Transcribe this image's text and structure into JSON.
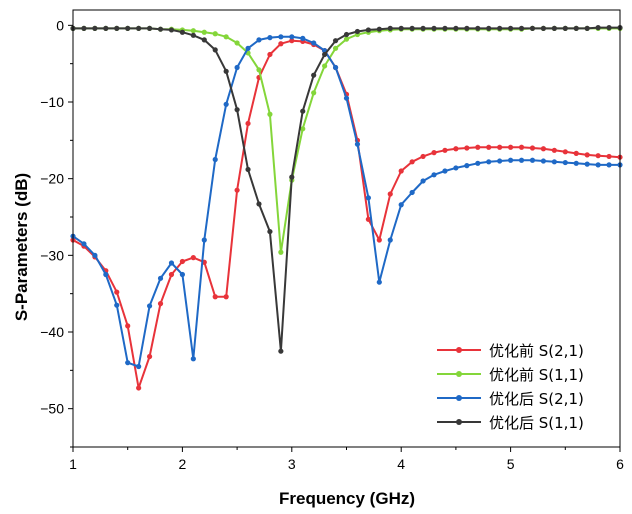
{
  "chart_data": {
    "type": "line",
    "title": "",
    "xlabel": "Frequency (GHz)",
    "ylabel": "S-Parameters (dB)",
    "xlim": [
      1,
      6
    ],
    "ylim": [
      -55,
      2
    ],
    "xticks": [
      1,
      2,
      3,
      4,
      5,
      6
    ],
    "yticks": [
      0,
      -10,
      -20,
      -30,
      -40,
      -50
    ],
    "grid": false,
    "legend_position": "bottom-right",
    "series": [
      {
        "name": "优化前 S(2,1)",
        "color": "#e8333a",
        "x": [
          1.0,
          1.1,
          1.2,
          1.3,
          1.4,
          1.5,
          1.6,
          1.7,
          1.8,
          1.9,
          2.0,
          2.1,
          2.2,
          2.3,
          2.4,
          2.5,
          2.6,
          2.7,
          2.8,
          2.9,
          3.0,
          3.1,
          3.2,
          3.3,
          3.4,
          3.5,
          3.6,
          3.7,
          3.8,
          3.9,
          4.0,
          4.1,
          4.2,
          4.3,
          4.4,
          4.5,
          4.6,
          4.7,
          4.8,
          4.9,
          5.0,
          5.1,
          5.2,
          5.3,
          5.4,
          5.5,
          5.6,
          5.7,
          5.8,
          5.9,
          6.0
        ],
        "values": [
          -28.0,
          -28.8,
          -30.2,
          -32.0,
          -34.8,
          -39.2,
          -47.3,
          -43.2,
          -36.3,
          -32.5,
          -30.8,
          -30.3,
          -30.9,
          -35.4,
          -35.4,
          -21.5,
          -12.8,
          -6.8,
          -3.8,
          -2.4,
          -2.0,
          -2.1,
          -2.5,
          -3.3,
          -5.5,
          -9.0,
          -15.0,
          -25.3,
          -28.0,
          -22.0,
          -19.0,
          -17.8,
          -17.1,
          -16.6,
          -16.3,
          -16.1,
          -16.0,
          -15.9,
          -15.9,
          -15.9,
          -15.9,
          -15.9,
          -16.0,
          -16.1,
          -16.3,
          -16.5,
          -16.7,
          -16.9,
          -17.0,
          -17.1,
          -17.2
        ]
      },
      {
        "name": "优化前 S(1,1)",
        "color": "#84d63a",
        "x": [
          1.0,
          1.1,
          1.2,
          1.3,
          1.4,
          1.5,
          1.6,
          1.7,
          1.8,
          1.9,
          2.0,
          2.1,
          2.2,
          2.3,
          2.4,
          2.5,
          2.6,
          2.7,
          2.8,
          2.9,
          3.0,
          3.1,
          3.2,
          3.3,
          3.4,
          3.5,
          3.6,
          3.7,
          3.8,
          3.9,
          4.0,
          4.1,
          4.2,
          4.3,
          4.4,
          4.5,
          4.6,
          4.7,
          4.8,
          4.9,
          5.0,
          5.1,
          5.2,
          5.3,
          5.4,
          5.5,
          5.6,
          5.7,
          5.8,
          5.9,
          6.0
        ],
        "values": [
          -0.4,
          -0.4,
          -0.4,
          -0.4,
          -0.4,
          -0.4,
          -0.4,
          -0.4,
          -0.5,
          -0.5,
          -0.6,
          -0.7,
          -0.9,
          -1.1,
          -1.5,
          -2.3,
          -3.6,
          -5.8,
          -11.6,
          -29.6,
          -20.2,
          -13.5,
          -8.8,
          -5.3,
          -3.0,
          -1.8,
          -1.2,
          -0.9,
          -0.7,
          -0.6,
          -0.5,
          -0.5,
          -0.5,
          -0.5,
          -0.5,
          -0.5,
          -0.5,
          -0.5,
          -0.5,
          -0.5,
          -0.5,
          -0.5,
          -0.4,
          -0.4,
          -0.4,
          -0.4,
          -0.4,
          -0.4,
          -0.4,
          -0.4,
          -0.4
        ]
      },
      {
        "name": "优化后 S(2,1)",
        "color": "#1f69c6",
        "x": [
          1.0,
          1.1,
          1.2,
          1.3,
          1.4,
          1.5,
          1.6,
          1.7,
          1.8,
          1.9,
          2.0,
          2.1,
          2.2,
          2.3,
          2.4,
          2.5,
          2.6,
          2.7,
          2.8,
          2.9,
          3.0,
          3.1,
          3.2,
          3.3,
          3.4,
          3.5,
          3.6,
          3.7,
          3.8,
          3.9,
          4.0,
          4.1,
          4.2,
          4.3,
          4.4,
          4.5,
          4.6,
          4.7,
          4.8,
          4.9,
          5.0,
          5.1,
          5.2,
          5.3,
          5.4,
          5.5,
          5.6,
          5.7,
          5.8,
          5.9,
          6.0
        ],
        "values": [
          -27.5,
          -28.5,
          -30.0,
          -32.5,
          -36.5,
          -44.0,
          -44.5,
          -36.6,
          -33.0,
          -31.0,
          -32.5,
          -43.5,
          -28.0,
          -17.5,
          -10.3,
          -5.5,
          -3.0,
          -1.9,
          -1.6,
          -1.5,
          -1.5,
          -1.7,
          -2.3,
          -3.3,
          -5.5,
          -9.5,
          -15.5,
          -22.5,
          -33.5,
          -28.0,
          -23.4,
          -21.8,
          -20.3,
          -19.5,
          -19.0,
          -18.6,
          -18.3,
          -18.0,
          -17.8,
          -17.7,
          -17.6,
          -17.6,
          -17.6,
          -17.7,
          -17.8,
          -17.9,
          -18.0,
          -18.1,
          -18.2,
          -18.2,
          -18.2
        ]
      },
      {
        "name": "优化后 S(1,1)",
        "color": "#383838",
        "x": [
          1.0,
          1.1,
          1.2,
          1.3,
          1.4,
          1.5,
          1.6,
          1.7,
          1.8,
          1.9,
          2.0,
          2.1,
          2.2,
          2.3,
          2.4,
          2.5,
          2.6,
          2.7,
          2.8,
          2.9,
          3.0,
          3.1,
          3.2,
          3.3,
          3.4,
          3.5,
          3.6,
          3.7,
          3.8,
          3.9,
          4.0,
          4.1,
          4.2,
          4.3,
          4.4,
          4.5,
          4.6,
          4.7,
          4.8,
          4.9,
          5.0,
          5.1,
          5.2,
          5.3,
          5.4,
          5.5,
          5.6,
          5.7,
          5.8,
          5.9,
          6.0
        ],
        "values": [
          -0.4,
          -0.4,
          -0.4,
          -0.4,
          -0.4,
          -0.4,
          -0.4,
          -0.4,
          -0.5,
          -0.6,
          -0.9,
          -1.3,
          -1.9,
          -3.2,
          -6.0,
          -11.0,
          -18.8,
          -23.3,
          -26.9,
          -42.5,
          -19.8,
          -11.2,
          -6.5,
          -3.8,
          -2.0,
          -1.2,
          -0.8,
          -0.6,
          -0.5,
          -0.4,
          -0.4,
          -0.4,
          -0.4,
          -0.4,
          -0.4,
          -0.4,
          -0.4,
          -0.4,
          -0.4,
          -0.4,
          -0.4,
          -0.4,
          -0.4,
          -0.4,
          -0.4,
          -0.4,
          -0.4,
          -0.4,
          -0.3,
          -0.3,
          -0.3
        ]
      }
    ]
  }
}
